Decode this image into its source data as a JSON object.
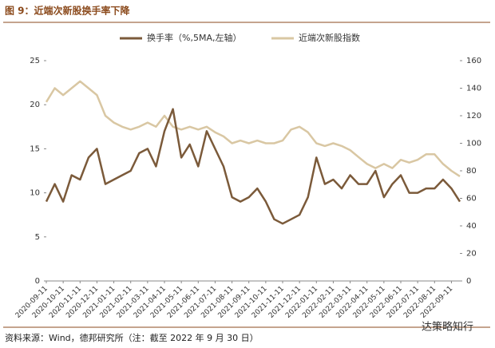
{
  "chart_data": {
    "type": "line",
    "title": "图 9：近端次新股换手率下降",
    "source": "资料来源：Wind，德邦研究所（注：截至 2022 年 9 月 30 日）",
    "watermark": "达策略知行",
    "categories": [
      "2020-09-11",
      null,
      "2020-10-11",
      null,
      "2020-11-11",
      null,
      "2020-12-11",
      null,
      "2021-01-11",
      null,
      "2021-02-11",
      null,
      "2021-03-11",
      null,
      "2021-04-11",
      null,
      "2021-05-11",
      null,
      "2021-06-11",
      null,
      "2021-07-11",
      null,
      "2021-08-11",
      null,
      "2021-09-11",
      null,
      "2021-10-11",
      null,
      "2021-11-11",
      null,
      "2021-12-11",
      null,
      "2022-01-11",
      null,
      "2022-02-11",
      null,
      "2022-03-11",
      null,
      "2022-04-11",
      null,
      "2022-05-11",
      null,
      "2022-06-11",
      null,
      "2022-07-11",
      null,
      "2022-08-11",
      null,
      "2022-09-11",
      null
    ],
    "series": [
      {
        "name": "换手率（%,5MA,左轴）",
        "color": "#7b5a3a",
        "values": [
          9,
          11,
          9,
          12,
          11.5,
          14,
          15,
          11,
          11.5,
          12,
          12.5,
          14.5,
          15,
          13,
          17,
          19.5,
          14,
          15.5,
          13,
          17,
          15,
          13,
          9.5,
          9,
          9.5,
          10.5,
          9,
          7,
          6.5,
          7,
          7.5,
          9.5,
          14,
          11,
          11.5,
          10.5,
          12,
          11,
          11,
          12.5,
          9.5,
          11,
          12,
          10,
          10,
          10.5,
          10.5,
          11.5,
          10.5,
          9
        ]
      },
      {
        "name": "近端次新股指数",
        "color": "#d9c7a3",
        "axis": "y2",
        "values": [
          130,
          140,
          135,
          140,
          145,
          140,
          135,
          120,
          115,
          112,
          110,
          112,
          115,
          112,
          120,
          112,
          110,
          112,
          110,
          112,
          108,
          105,
          100,
          102,
          100,
          102,
          100,
          100,
          102,
          110,
          112,
          108,
          100,
          98,
          100,
          98,
          95,
          90,
          85,
          82,
          85,
          82,
          88,
          86,
          88,
          92,
          92,
          85,
          80,
          76
        ]
      }
    ],
    "ylim": [
      0,
      25
    ],
    "yticks": [
      0,
      5,
      10,
      15,
      20,
      25
    ],
    "y2lim": [
      0,
      160
    ],
    "y2ticks": [
      0,
      20,
      40,
      60,
      80,
      100,
      120,
      140,
      160
    ]
  }
}
